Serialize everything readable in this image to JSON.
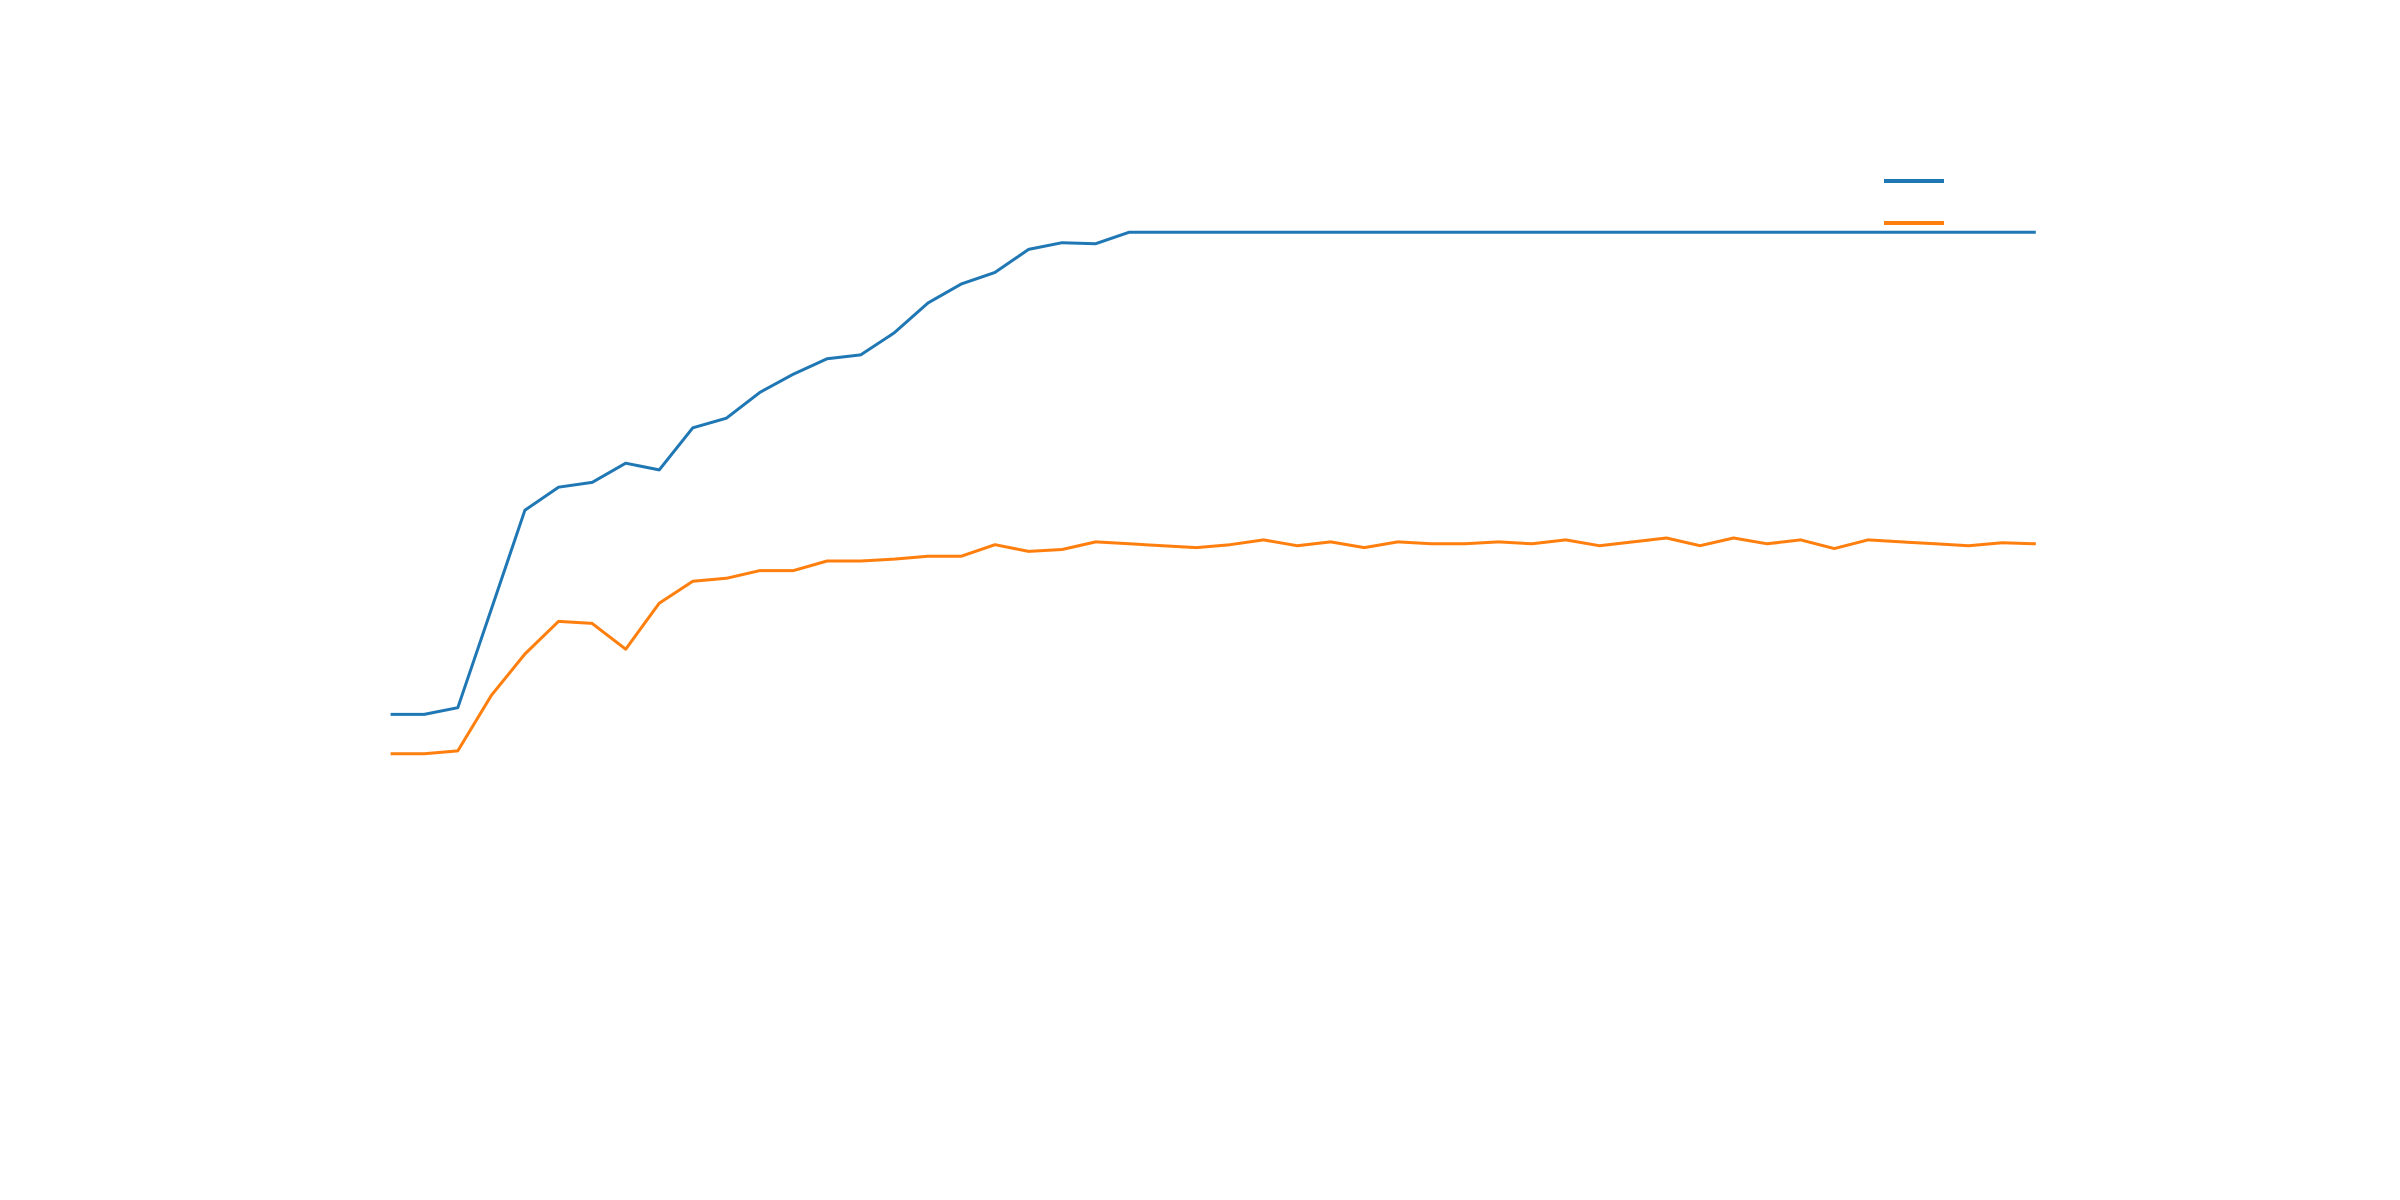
{
  "chart_data": {
    "type": "line",
    "title": "",
    "xlabel": "",
    "ylabel": "",
    "grid": false,
    "legend": "top-right",
    "x": [
      0,
      1,
      2,
      3,
      4,
      5,
      6,
      7,
      8,
      9,
      10,
      11,
      12,
      13,
      14,
      15,
      16,
      17,
      18,
      19,
      20,
      21,
      22,
      23,
      24,
      25,
      26,
      27,
      28,
      29,
      30,
      31,
      32,
      33,
      34,
      35,
      36,
      37,
      38,
      39,
      40,
      41,
      42,
      43,
      44,
      45,
      46,
      47,
      48,
      49
    ],
    "xlim": [
      -2.7,
      52.7
    ],
    "ylim": [
      0.0,
      0.97
    ],
    "series": [
      {
        "color": "#1f77b4",
        "values": [
          0.35,
          0.35,
          0.357,
          0.46,
          0.563,
          0.587,
          0.592,
          0.612,
          0.605,
          0.649,
          0.659,
          0.686,
          0.705,
          0.721,
          0.725,
          0.748,
          0.779,
          0.799,
          0.811,
          0.835,
          0.842,
          0.841,
          0.853,
          0.853,
          0.853,
          0.853,
          0.853,
          0.853,
          0.853,
          0.853,
          0.853,
          0.853,
          0.853,
          0.853,
          0.853,
          0.853,
          0.853,
          0.853,
          0.853,
          0.853,
          0.853,
          0.853,
          0.853,
          0.853,
          0.853,
          0.853,
          0.853,
          0.853,
          0.853,
          0.853
        ]
      },
      {
        "color": "#ff7f0e",
        "values": [
          0.309,
          0.309,
          0.312,
          0.37,
          0.413,
          0.447,
          0.445,
          0.418,
          0.466,
          0.489,
          0.492,
          0.5,
          0.5,
          0.51,
          0.51,
          0.512,
          0.515,
          0.515,
          0.527,
          0.52,
          0.522,
          0.53,
          0.528,
          0.526,
          0.524,
          0.527,
          0.532,
          0.526,
          0.53,
          0.524,
          0.53,
          0.528,
          0.528,
          0.53,
          0.528,
          0.532,
          0.526,
          0.53,
          0.534,
          0.526,
          0.534,
          0.528,
          0.532,
          0.523,
          0.532,
          0.53,
          0.528,
          0.526,
          0.529,
          0.528
        ]
      }
    ]
  }
}
